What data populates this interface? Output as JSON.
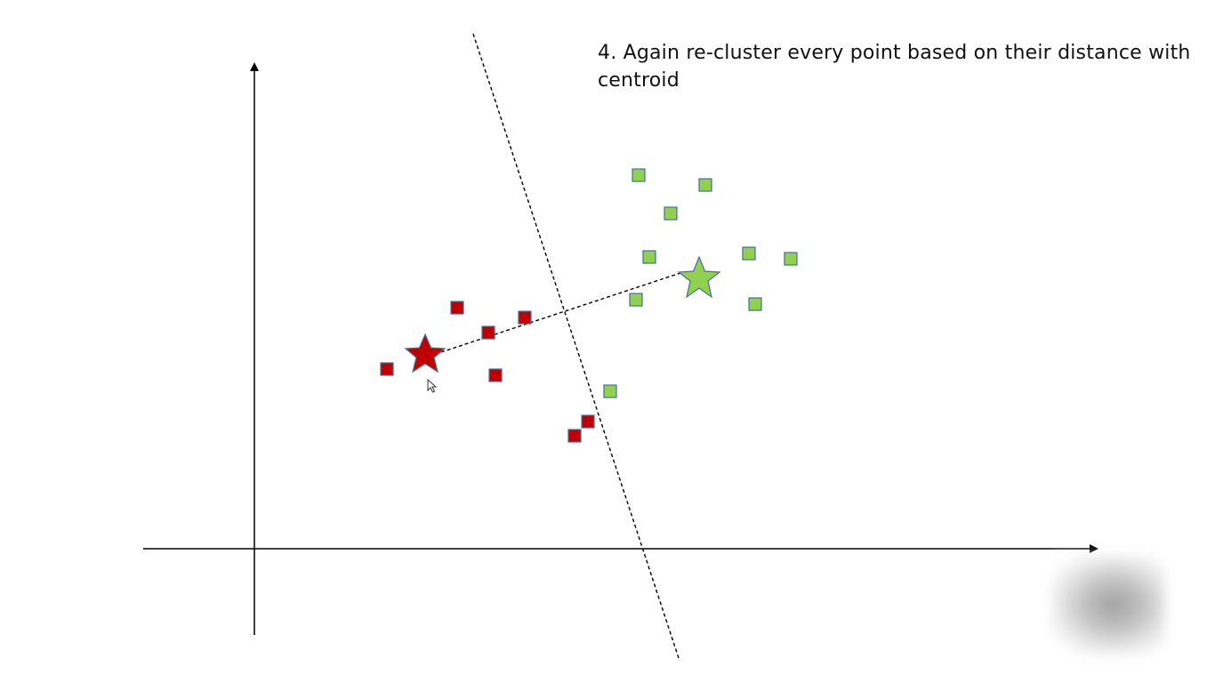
{
  "slide": {
    "title": "4. Again re-cluster every point based on their distance with centroid"
  },
  "colors": {
    "red_cluster": "#c00000",
    "green_cluster": "#92d050",
    "marker_stroke": "#41719c",
    "axis": "#000000",
    "divider": "#000000"
  },
  "icons": {
    "cursor": "mouse-pointer-icon",
    "logo": "watermark-logo"
  }
}
